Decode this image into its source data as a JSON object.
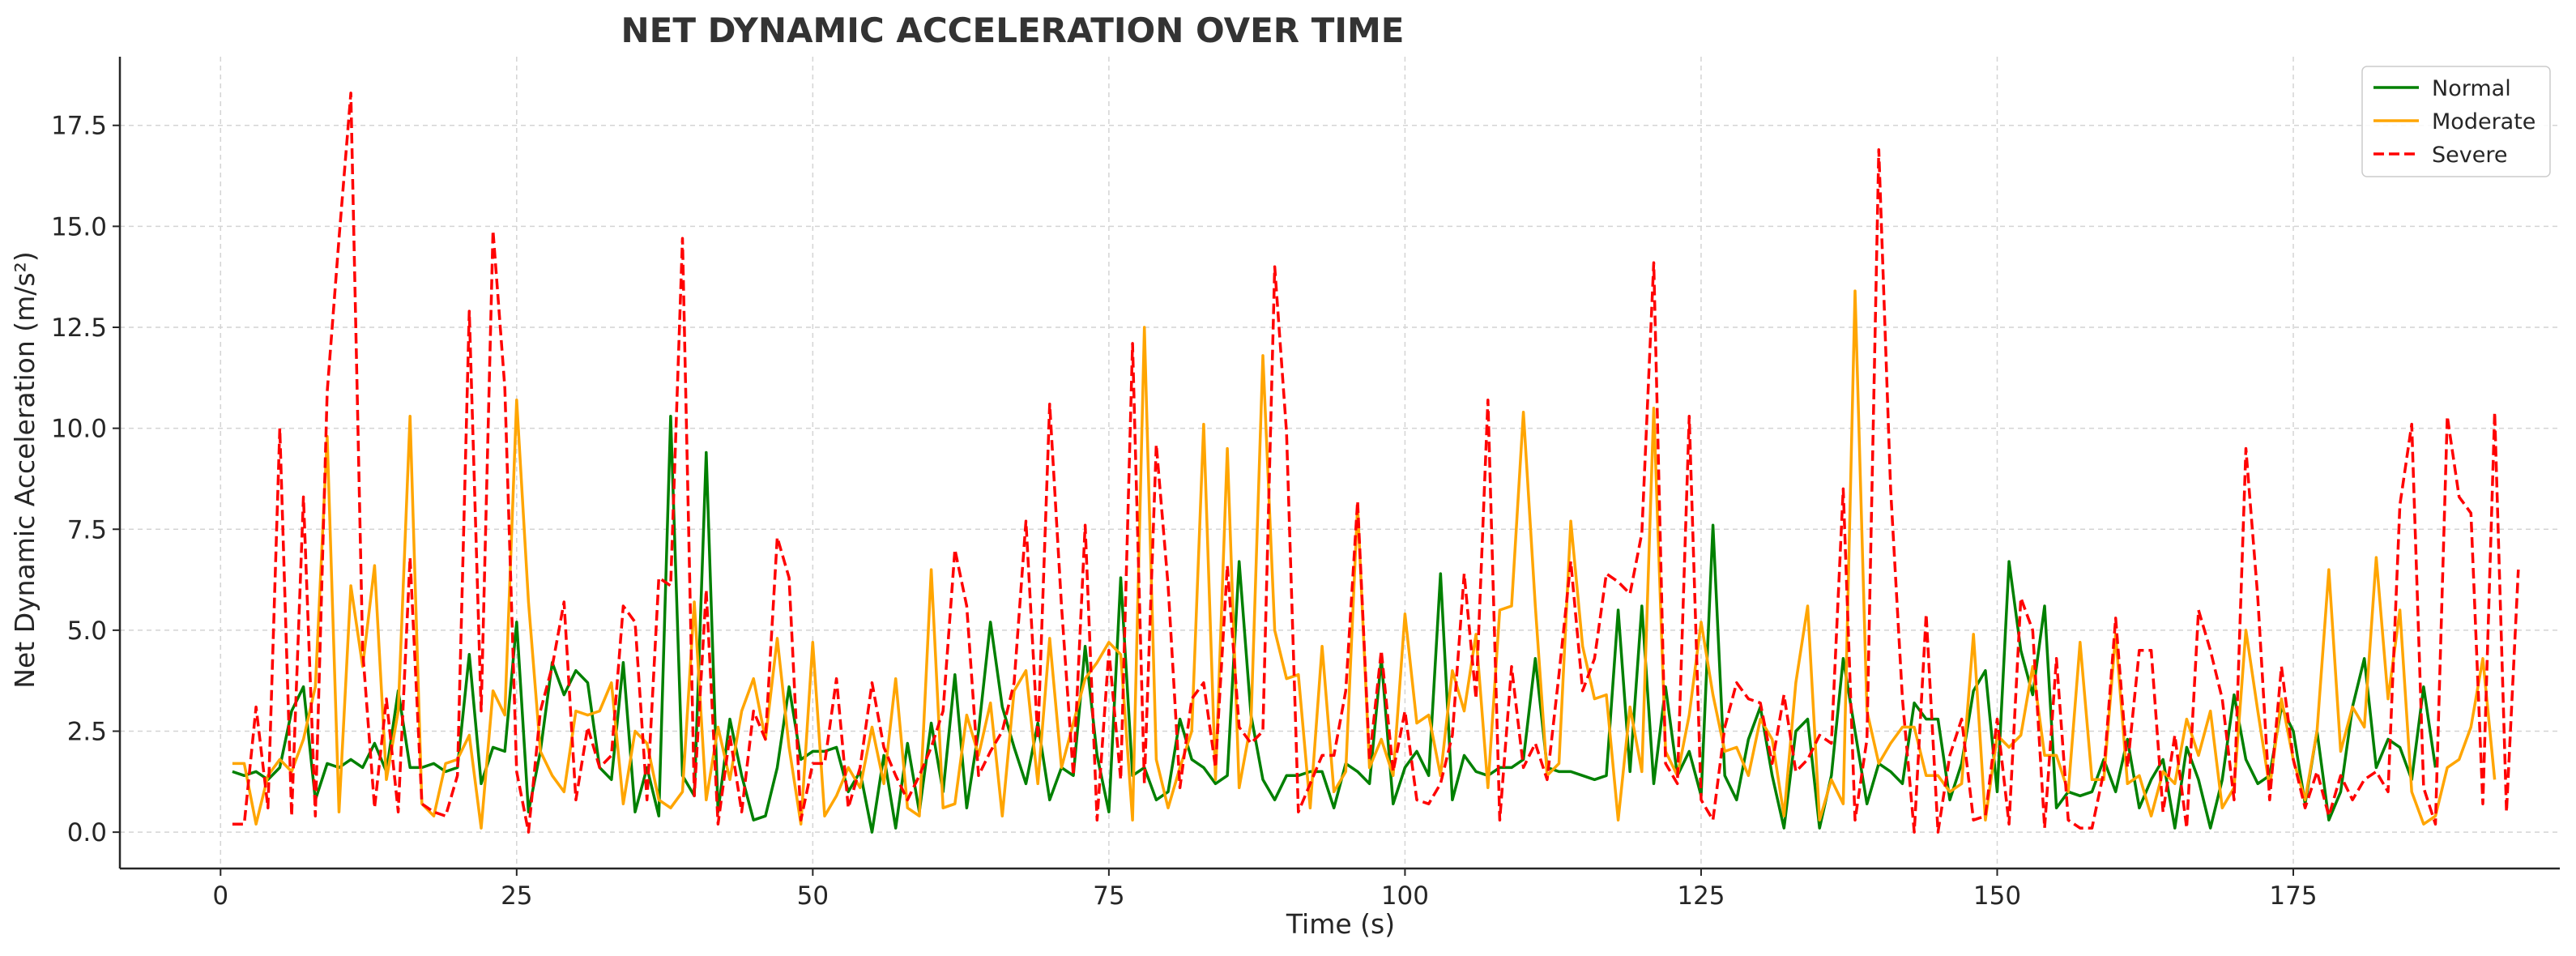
{
  "chart_data": {
    "type": "line",
    "title": "NET DYNAMIC ACCELERATION OVER TIME",
    "xlabel": "Time (s)",
    "ylabel": "Net Dynamic Acceleration (m/s²)",
    "xlim": [
      -8.5,
      197.5
    ],
    "ylim": [
      -0.9,
      19.2
    ],
    "xticks": [
      0,
      25,
      50,
      75,
      100,
      125,
      150,
      175
    ],
    "yticks": [
      0.0,
      2.5,
      5.0,
      7.5,
      10.0,
      12.5,
      15.0,
      17.5
    ],
    "xtick_labels": [
      "0",
      "25",
      "50",
      "75",
      "100",
      "125",
      "150",
      "175"
    ],
    "ytick_labels": [
      "0.0",
      "2.5",
      "5.0",
      "7.5",
      "10.0",
      "12.5",
      "15.0",
      "17.5"
    ],
    "grid": true,
    "legend_position": "top-right",
    "x_start": 1,
    "series": [
      {
        "name": "Normal",
        "color": "#008000",
        "dash": "solid",
        "values": [
          1.5,
          1.4,
          1.5,
          1.3,
          1.6,
          3.0,
          3.6,
          0.8,
          1.7,
          1.6,
          1.8,
          1.6,
          2.2,
          1.5,
          3.5,
          1.6,
          1.6,
          1.7,
          1.5,
          1.6,
          4.4,
          1.2,
          2.1,
          2.0,
          5.2,
          0.5,
          2.0,
          4.2,
          3.4,
          4.0,
          3.7,
          1.6,
          1.3,
          4.2,
          0.5,
          1.6,
          0.4,
          10.3,
          1.4,
          0.9,
          9.4,
          0.5,
          2.8,
          1.4,
          0.3,
          0.4,
          1.6,
          3.6,
          1.8,
          2.0,
          2.0,
          2.1,
          1.0,
          1.5,
          0.0,
          1.9,
          0.1,
          2.2,
          0.5,
          2.7,
          1.0,
          3.9,
          0.6,
          2.5,
          5.2,
          3.1,
          2.1,
          1.2,
          2.7,
          0.8,
          1.6,
          1.4,
          4.6,
          1.9,
          0.5,
          6.3,
          1.4,
          1.6,
          0.8,
          1.0,
          2.8,
          1.8,
          1.6,
          1.2,
          1.4,
          6.7,
          2.9,
          1.3,
          0.8,
          1.4,
          1.4,
          1.5,
          1.5,
          0.6,
          1.7,
          1.5,
          1.2,
          4.3,
          0.7,
          1.6,
          2.0,
          1.4,
          6.4,
          0.8,
          1.9,
          1.5,
          1.4,
          1.6,
          1.6,
          1.8,
          4.3,
          1.6,
          1.5,
          1.5,
          1.4,
          1.3,
          1.4,
          5.5,
          1.5,
          5.6,
          1.2,
          3.6,
          1.4,
          2.0,
          0.9,
          7.6,
          1.4,
          0.8,
          2.3,
          3.1,
          1.4,
          0.1,
          2.5,
          2.8,
          0.1,
          1.4,
          4.3,
          2.5,
          0.7,
          1.7,
          1.5,
          1.2,
          3.2,
          2.8,
          2.8,
          0.8,
          1.7,
          3.5,
          4.0,
          1.0,
          6.7,
          4.5,
          3.4,
          5.6,
          0.6,
          1.0,
          0.9,
          1.0,
          1.8,
          1.0,
          2.3,
          0.6,
          1.3,
          1.8,
          0.1,
          2.1,
          1.3,
          0.1,
          1.3,
          3.4,
          1.8,
          1.2,
          1.4,
          3.1,
          2.5,
          0.7,
          2.5,
          0.3,
          1.0,
          3.1,
          4.3,
          1.6,
          2.3,
          2.1,
          1.3,
          3.6,
          1.6
        ]
      },
      {
        "name": "Moderate",
        "color": "#FFA500",
        "dash": "solid",
        "values": [
          1.7,
          1.7,
          0.2,
          1.4,
          1.8,
          1.5,
          2.3,
          3.6,
          9.8,
          0.5,
          6.1,
          4.1,
          6.6,
          1.3,
          3.0,
          10.3,
          0.7,
          0.4,
          1.7,
          1.8,
          2.4,
          0.1,
          3.5,
          2.9,
          10.7,
          5.7,
          2.0,
          1.4,
          1.0,
          3.0,
          2.9,
          3.0,
          3.7,
          0.7,
          2.5,
          2.2,
          0.8,
          0.6,
          1.0,
          5.7,
          0.8,
          2.6,
          1.3,
          3.0,
          3.8,
          2.3,
          4.8,
          2.1,
          0.2,
          4.7,
          0.4,
          0.9,
          1.6,
          1.1,
          2.6,
          1.2,
          3.8,
          0.6,
          0.4,
          6.5,
          0.6,
          0.7,
          2.9,
          1.9,
          3.2,
          0.4,
          3.5,
          4.0,
          1.2,
          4.8,
          1.6,
          2.7,
          3.8,
          4.2,
          4.7,
          4.4,
          0.3,
          12.5,
          1.8,
          0.6,
          1.6,
          2.5,
          10.1,
          1.3,
          9.5,
          1.1,
          2.7,
          11.8,
          5.0,
          3.8,
          3.9,
          0.6,
          4.6,
          1.0,
          1.5,
          8.1,
          1.6,
          2.3,
          1.4,
          5.4,
          2.7,
          2.9,
          1.4,
          4.0,
          3.0,
          4.9,
          1.1,
          5.5,
          5.6,
          10.4,
          5.6,
          1.4,
          1.7,
          7.7,
          4.6,
          3.3,
          3.4,
          0.3,
          3.1,
          1.5,
          10.5,
          2.0,
          1.4,
          2.9,
          5.2,
          3.4,
          2.0,
          2.1,
          1.4,
          2.8,
          2.3,
          0.4,
          3.7,
          5.6,
          0.3,
          1.3,
          0.7,
          13.4,
          3.0,
          1.7,
          2.2,
          2.6,
          2.6,
          1.4,
          1.4,
          1.0,
          1.2,
          4.9,
          0.3,
          2.4,
          2.1,
          2.4,
          4.1,
          1.9,
          1.9,
          1.0,
          4.7,
          1.3,
          1.3,
          4.9,
          1.2,
          1.4,
          0.4,
          1.5,
          1.2,
          2.8,
          1.9,
          3.0,
          0.6,
          1.1,
          5.0,
          3.0,
          1.1,
          3.3,
          1.8,
          0.8,
          2.5,
          6.5,
          2.0,
          3.1,
          2.6,
          6.8,
          3.3,
          5.5,
          1.0,
          0.2,
          0.4,
          1.6,
          1.8,
          2.6,
          4.3,
          1.3
        ]
      },
      {
        "name": "Severe",
        "color": "#FF0000",
        "dash": "dashed",
        "values": [
          0.2,
          0.2,
          3.1,
          0.6,
          10.0,
          0.4,
          8.3,
          0.4,
          10.9,
          14.7,
          18.3,
          4.5,
          0.6,
          3.3,
          0.5,
          6.8,
          0.7,
          0.5,
          0.4,
          1.4,
          12.9,
          3.0,
          14.9,
          11.0,
          1.5,
          0.0,
          3.0,
          4.1,
          5.7,
          0.8,
          2.6,
          1.6,
          1.9,
          5.6,
          5.2,
          0.8,
          6.3,
          6.1,
          14.7,
          0.9,
          6.0,
          0.2,
          2.4,
          0.5,
          3.0,
          2.3,
          7.3,
          6.3,
          0.3,
          1.7,
          1.7,
          3.8,
          0.6,
          1.6,
          3.7,
          2.1,
          1.4,
          0.8,
          1.4,
          2.1,
          3.0,
          7.0,
          5.6,
          1.4,
          2.0,
          2.5,
          3.7,
          7.7,
          2.3,
          10.6,
          5.6,
          1.4,
          7.6,
          0.3,
          4.5,
          1.3,
          12.1,
          1.2,
          9.6,
          6.1,
          1.1,
          3.3,
          3.7,
          1.6,
          6.6,
          2.6,
          2.2,
          2.5,
          14.0,
          9.9,
          0.5,
          1.2,
          1.9,
          1.9,
          3.5,
          8.2,
          1.8,
          4.5,
          1.5,
          3.0,
          0.8,
          0.7,
          1.2,
          2.4,
          6.4,
          3.3,
          10.7,
          0.3,
          4.1,
          1.6,
          2.2,
          1.3,
          3.9,
          6.7,
          3.5,
          4.3,
          6.4,
          6.2,
          5.9,
          7.4,
          14.1,
          1.7,
          1.2,
          10.3,
          0.8,
          0.3,
          2.6,
          3.7,
          3.3,
          3.2,
          1.7,
          3.4,
          1.5,
          1.8,
          2.4,
          2.2,
          8.5,
          0.3,
          2.3,
          16.9,
          8.5,
          3.3,
          0.0,
          5.4,
          0.0,
          1.9,
          2.8,
          0.3,
          0.4,
          2.8,
          0.2,
          5.8,
          5.0,
          0.1,
          4.3,
          0.3,
          0.1,
          0.1,
          1.5,
          5.3,
          1.6,
          4.5,
          4.5,
          0.5,
          2.4,
          0.1,
          5.5,
          4.5,
          3.3,
          0.8,
          9.5,
          5.8,
          0.8,
          4.1,
          1.8,
          0.6,
          1.5,
          0.4,
          1.4,
          0.8,
          1.3,
          1.5,
          1.0,
          8.1,
          10.1,
          1.1,
          0.2,
          10.3,
          8.3,
          7.9,
          0.7,
          10.4,
          0.5,
          6.5
        ]
      }
    ]
  }
}
